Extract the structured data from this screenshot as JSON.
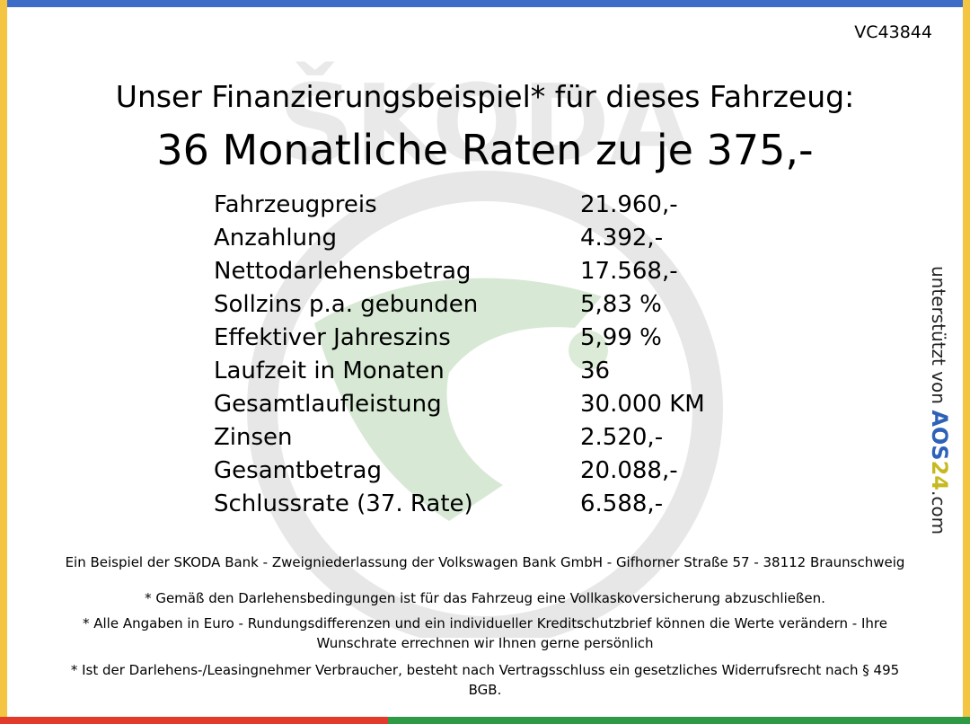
{
  "logo_text": "ŠKODA",
  "reference": "VC43844",
  "headline": "Unser Finanzierungsbeispiel* für dieses Fahrzeug:",
  "subheadline": "36 Monatliche Raten zu je 375,-",
  "rows": [
    {
      "label": "Fahrzeugpreis",
      "value": "21.960,-"
    },
    {
      "label": "Anzahlung",
      "value": "4.392,-"
    },
    {
      "label": "Nettodarlehensbetrag",
      "value": "17.568,-"
    },
    {
      "label": "Sollzins p.a. gebunden",
      "value": "5,83 %"
    },
    {
      "label": "Effektiver Jahreszins",
      "value": "5,99 %"
    },
    {
      "label": "Laufzeit in Monaten",
      "value": "36"
    },
    {
      "label": "Gesamtlaufleistung",
      "value": "30.000 KM"
    },
    {
      "label": "Zinsen",
      "value": "2.520,-"
    },
    {
      "label": "Gesamtbetrag",
      "value": "20.088,-"
    },
    {
      "label": "Schlussrate (37. Rate)",
      "value": "6.588,-"
    }
  ],
  "side_branding": {
    "prefix": "unterstützt von",
    "brand": "AOS",
    "brand_number": "24",
    "suffix": ".com"
  },
  "footnotes": {
    "bank": "Ein Beispiel der SKODA Bank - Zweigniederlassung der Volkswagen Bank GmbH - Gifhorner Straße 57 - 38112 Braunschweig",
    "insurance": "* Gemäß den Darlehensbedingungen ist für das Fahrzeug eine Vollkaskoversicherung abzuschließen.",
    "euro": "* Alle Angaben in Euro - Rundungsdifferenzen und ein individueller Kreditschutzbrief können die Werte verändern - Ihre Wunschrate errechnen wir Ihnen gerne persönlich",
    "withdrawal": "* Ist der Darlehens-/Leasingnehmer Verbraucher, besteht nach Vertragsschluss ein gesetzliches Widerrufsrecht nach § 495 BGB."
  },
  "colors": {
    "top_bar": "#3d6cc8",
    "side_bars": "#f4c542",
    "bottom_red": "#e33b2b",
    "bottom_green": "#2f9a45",
    "watermark_green": "#4a9a3a",
    "watermark_gray": "#cfcfcf"
  }
}
